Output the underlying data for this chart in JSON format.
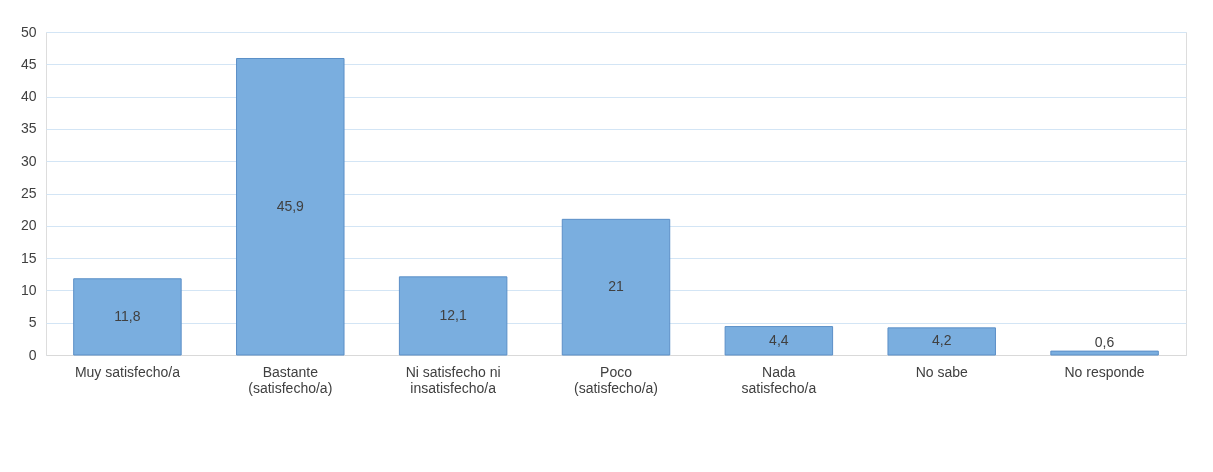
{
  "chart_data": {
    "type": "bar",
    "categories": [
      "Muy satisfecho/a",
      "Bastante (satisfecho/a)",
      "Ni satisfecho ni insatisfecho/a",
      "Poco (satisfecho/a)",
      "Nada satisfecho/a",
      "No sabe",
      "No responde"
    ],
    "values": [
      11.8,
      45.9,
      12.1,
      21,
      4.4,
      4.2,
      0.6
    ],
    "value_labels": [
      "11,8",
      "45,9",
      "12,1",
      "21",
      "4,4",
      "4,2",
      "0,6"
    ],
    "color": "#7aaedf",
    "ylim": [
      0,
      50
    ],
    "yticks": [
      0,
      5,
      10,
      15,
      20,
      25,
      30,
      35,
      40,
      45,
      50
    ],
    "grid": "y"
  }
}
